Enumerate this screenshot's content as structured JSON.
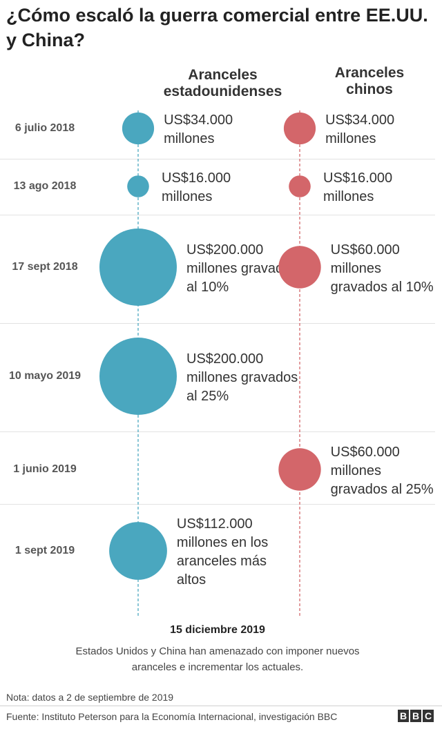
{
  "title": "¿Cómo escaló la guerra comercial entre EE.UU. y China?",
  "headers": {
    "us": "Aranceles estadounidenses",
    "china": "Aranceles chinos"
  },
  "colors": {
    "us": "#4aa7bf",
    "china": "#d3666a"
  },
  "chart_data": {
    "type": "bubble-timeline",
    "series": [
      {
        "name": "Aranceles estadounidenses",
        "unit": "US$ millones"
      },
      {
        "name": "Aranceles chinos",
        "unit": "US$ millones"
      }
    ],
    "rows": [
      {
        "date": "6 julio 2018",
        "us": {
          "value": 34000,
          "label": "US$34.000 millones"
        },
        "china": {
          "value": 34000,
          "label": "US$34.000 millones"
        }
      },
      {
        "date": "13 ago 2018",
        "us": {
          "value": 16000,
          "label": "US$16.000 millones"
        },
        "china": {
          "value": 16000,
          "label": "US$16.000 millones"
        }
      },
      {
        "date": "17 sept 2018",
        "us": {
          "value": 200000,
          "label": "US$200.000 millones gravados al 10%"
        },
        "china": {
          "value": 60000,
          "label": "US$60.000 millones gravados al 10%"
        }
      },
      {
        "date": "10 mayo 2019",
        "us": {
          "value": 200000,
          "label": "US$200.000 millones gravados al 25%"
        },
        "china": null
      },
      {
        "date": "1 junio 2019",
        "us": null,
        "china": {
          "value": 60000,
          "label": "US$60.000 millones gravados al 25%"
        }
      },
      {
        "date": "1 sept 2019",
        "us": {
          "value": 112000,
          "label": "US$112.000 millones en los aranceles más altos"
        },
        "china": null
      }
    ]
  },
  "final": {
    "date": "15 diciembre 2019",
    "text": "Estados Unidos y China han amenazado con imponer nuevos aranceles e incrementar los actuales."
  },
  "note": "Nota: datos a 2 de septiembre de 2019",
  "source": "Fuente: Instituto Peterson para la Economía Internacional, investigación BBC",
  "brand": "BBC"
}
